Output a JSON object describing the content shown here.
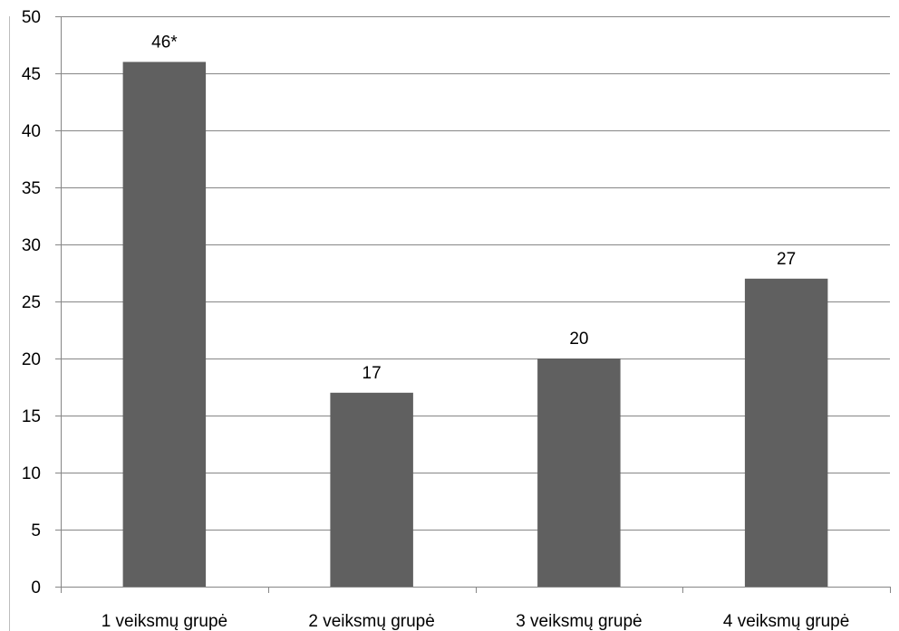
{
  "chart_data": {
    "type": "bar",
    "categories": [
      "1 veiksmų grupė",
      "2 veiksmų grupė",
      "3 veiksmų grupė",
      "4 veiksmų grupė"
    ],
    "values": [
      46,
      17,
      20,
      27
    ],
    "data_labels": [
      "46*",
      "17",
      "20",
      "27"
    ],
    "title": "",
    "xlabel": "",
    "ylabel": "",
    "ylim": [
      0,
      50
    ],
    "yticks": [
      0,
      5,
      10,
      15,
      20,
      25,
      30,
      35,
      40,
      45,
      50
    ],
    "grid": true,
    "legend": "none",
    "colors": {
      "bar": "#606060",
      "grid": "#868686",
      "axis": "#868686"
    }
  }
}
